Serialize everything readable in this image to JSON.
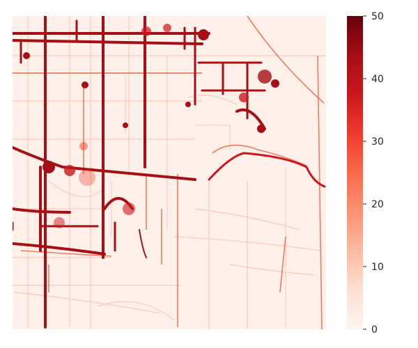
{
  "chart_data": {
    "type": "heatmap",
    "title": "",
    "xlabel": "",
    "ylabel": "",
    "colorbar": {
      "min": 0,
      "max": 50,
      "ticks": [
        0,
        10,
        20,
        30,
        40,
        50
      ],
      "tick_labels": [
        "0",
        "10",
        "20",
        "30",
        "40",
        "50"
      ],
      "colormap": "Reds",
      "colors": [
        "#fff5f0",
        "#fee0d2",
        "#fcbba1",
        "#fc9272",
        "#fb6a4a",
        "#ef3b2c",
        "#cb181d",
        "#a50f15",
        "#67000d"
      ]
    },
    "grid": false,
    "legend": "colorbar-right",
    "description_values": {
      "background_value": 1,
      "road_value_high": 50,
      "road_value_low": 5
    }
  }
}
